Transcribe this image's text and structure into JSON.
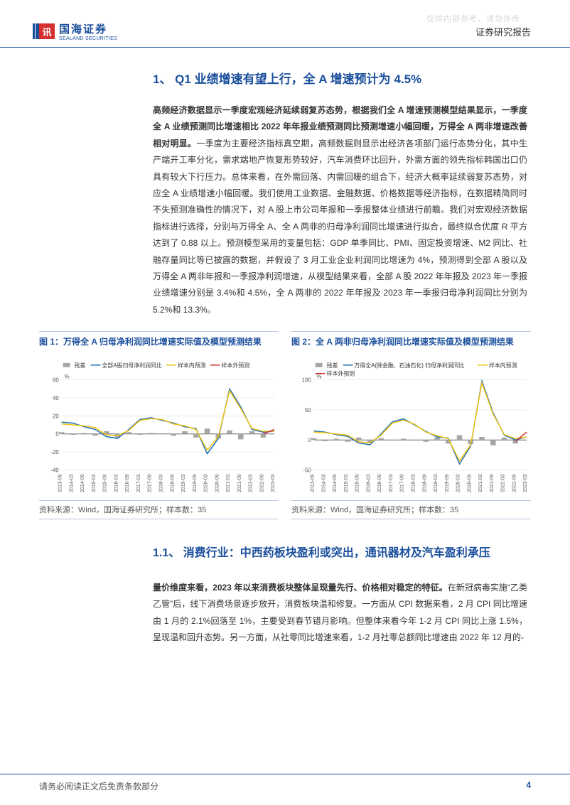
{
  "watermark": "仅供内部参考，请勿外传",
  "logo": {
    "cn": "国海证券",
    "en": "SEALAND SECURITIES",
    "mark": "讯"
  },
  "header_right": "证券研究报告",
  "h1": "1、 Q1 业绩增速有望上行，全 A 增速预计为 4.5%",
  "para_bold": "高频经济数据显示一季度宏观经济延续弱复苏态势，根据我们全 A 增速预测模型结果显示，一季度全 A 业绩预测同比增速相比 2022 年年报业绩预测同比预测增速小幅回暖，万得全 A 两非增速改善相对明显。",
  "para_rest": "一季度为主要经济指标真空期，高频数据则显示出经济各项部门运行态势分化，其中生产端开工率分化，需求端地产恢复形势较好，汽车消费环比回升，外需方面的领先指标韩国出口仍具有较大下行压力。总体来看，在外需回落、内需回暖的组合下，经济大概率延续弱复苏态势，对应全 A 业绩增速小幅回暖。我们使用工业数据、金融数据、价格数据等经济指标，在数据精简同时不失预测准确性的情况下，对 A 股上市公司年报和一季报整体业绩进行前瞻。我们对宏观经济数据指标进行选择，分别与万得全 A、全 A 两非的归母净利润同比增速进行拟合，最终拟合优度 R 平方达到了 0.88 以上。预测模型采用的变量包括：GDP 单季同比、PMI、固定投资增速、M2 同比、社融存量同比等已披露的数据，并假设了 3 月工业企业利润同比增速为 4%，预测得到全部 A 股以及万得全 A 两非年报和一季报净利润增速，从模型结果来看，全部 A 股 2022 年年报及 2023 年一季报业绩增速分别是 3.4%和 4.5%，全 A 两非的 2022 年年报及 2023 年一季报归母净利润同比分别为 5.2%和 13.3%。",
  "chart1": {
    "title": "图 1：万得全 A 归母净利润同比增速实际值及模型预测结果",
    "source": "资料来源：Wind，国海证券研究所；样本数：35",
    "type": "line+bar",
    "ylim": [
      -40,
      60
    ],
    "ytick_step": 20,
    "y_unit": "%",
    "x_labels": [
      "2013-09",
      "2014-03",
      "2014-09",
      "2015-03",
      "2015-09",
      "2016-03",
      "2016-09",
      "2017-03",
      "2017-09",
      "2018-03",
      "2018-09",
      "2019-03",
      "2019-09",
      "2020-03",
      "2020-09",
      "2021-03",
      "2021-09",
      "2022-03",
      "2022-09",
      "2023-03"
    ],
    "legend": [
      {
        "label": "残差",
        "type": "bar",
        "color": "#a6a6a6"
      },
      {
        "label": "全部A股归母净利润同比",
        "type": "line",
        "color": "#1f6fb5"
      },
      {
        "label": "样本内预测",
        "type": "line",
        "color": "#f2c40f"
      },
      {
        "label": "样本外预测",
        "type": "line",
        "color": "#d62f2f"
      }
    ],
    "bars": [
      2,
      -1,
      1,
      -2,
      3,
      -4,
      2,
      -1,
      1,
      0,
      -2,
      3,
      -4,
      6,
      -5,
      4,
      -6,
      3,
      -4,
      0
    ],
    "line_actual": [
      13,
      12,
      8,
      5,
      -3,
      -5,
      5,
      16,
      18,
      15,
      12,
      8,
      6,
      -22,
      -5,
      50,
      30,
      5,
      2,
      3
    ],
    "line_in": [
      11,
      10,
      9,
      7,
      -1,
      -2,
      4,
      15,
      17,
      16,
      11,
      9,
      5,
      -18,
      -3,
      48,
      28,
      6,
      3,
      3
    ],
    "line_out": [
      null,
      null,
      null,
      null,
      null,
      null,
      null,
      null,
      null,
      null,
      null,
      null,
      null,
      null,
      null,
      null,
      null,
      null,
      0,
      5
    ],
    "grid_color": "#d9d9d9",
    "axis_color": "#666666",
    "label_fontsize": 8
  },
  "chart2": {
    "title": "图 2：全 A 两非归母净利润同比增速实际值及模型预测结果",
    "source": "资料来源：Wind，国海证券研究所；样本数：35",
    "type": "line+bar",
    "ylim": [
      -50,
      100
    ],
    "ytick_step": 50,
    "y_unit": "%",
    "x_labels": [
      "2013-09",
      "2014-03",
      "2014-09",
      "2015-03",
      "2015-09",
      "2016-03",
      "2016-09",
      "2017-03",
      "2017-09",
      "2018-03",
      "2018-09",
      "2019-03",
      "2019-09",
      "2020-03",
      "2020-09",
      "2021-03",
      "2021-09",
      "2022-03",
      "2022-09",
      "2023-03"
    ],
    "legend": [
      {
        "label": "残差",
        "type": "bar",
        "color": "#a6a6a6"
      },
      {
        "label": "万得全A(除金融、石油石化) 归母净利润同比",
        "type": "line",
        "color": "#1f6fb5"
      },
      {
        "label": "样本内预测",
        "type": "line",
        "color": "#f2c40f"
      },
      {
        "label": "样本外预测",
        "type": "line",
        "color": "#d62f2f"
      }
    ],
    "bars": [
      3,
      -2,
      2,
      -3,
      4,
      -5,
      3,
      -1,
      2,
      0,
      -3,
      4,
      -6,
      8,
      -7,
      5,
      -9,
      4,
      -6,
      0
    ],
    "line_actual": [
      15,
      13,
      9,
      6,
      -5,
      -8,
      10,
      30,
      35,
      25,
      14,
      5,
      3,
      -40,
      -10,
      98,
      45,
      8,
      0,
      5
    ],
    "line_in": [
      13,
      12,
      10,
      8,
      -3,
      -5,
      8,
      28,
      33,
      26,
      13,
      7,
      2,
      -35,
      -8,
      95,
      43,
      9,
      2,
      5
    ],
    "line_out": [
      null,
      null,
      null,
      null,
      null,
      null,
      null,
      null,
      null,
      null,
      null,
      null,
      null,
      null,
      null,
      null,
      null,
      null,
      -2,
      13
    ],
    "grid_color": "#d9d9d9",
    "axis_color": "#666666",
    "label_fontsize": 8
  },
  "h2": "1.1、 消费行业：中西药板块盈利或突出，通讯器材及汽车盈利承压",
  "para2_bold": "量价维度来看，2023 年以来消费板块整体呈现量先行、价格相对稳定的特征。",
  "para2_rest": "在新冠病毒实施“乙类乙管”后，线下消费场景逐步放开，消费板块温和修复。一方面从 CPI 数据来看，2 月 CPI 同比增速由 1 月的 2.1%回落至 1%，主要受到春节错月影响。但整体来看今年 1-2 月 CPI 同比上涨 1.5%，呈现温和回升态势。另一方面，从社零同比增速来看，1-2 月社零总额同比增速由 2022 年 12 月的-",
  "footer": {
    "left": "请务必阅读正文后免责条款部分",
    "page": "4"
  }
}
